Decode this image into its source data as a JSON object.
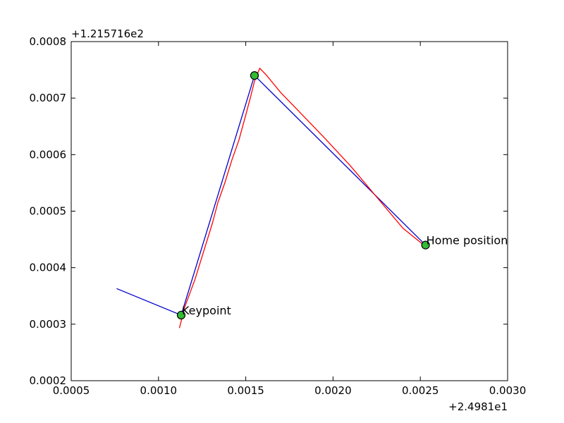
{
  "chart_data": {
    "type": "line",
    "title": "",
    "xlabel": "",
    "ylabel": "",
    "x_offset_label": "+2.4981e1",
    "y_offset_label": "+1.215716e2",
    "xlim": [
      0.0005,
      0.003
    ],
    "ylim": [
      0.0002,
      0.0008
    ],
    "x_ticks": [
      "0.0005",
      "0.0010",
      "0.0015",
      "0.0020",
      "0.0025",
      "0.0030"
    ],
    "y_ticks": [
      "0.0002",
      "0.0003",
      "0.0004",
      "0.0005",
      "0.0006",
      "0.0007",
      "0.0008"
    ],
    "grid": false,
    "series": [
      {
        "color": "#0000cc",
        "x": [
          0.00076,
          0.00113,
          0.00155,
          0.00253
        ],
        "y": [
          0.000363,
          0.000316,
          0.00074,
          0.00044
        ]
      },
      {
        "color": "#ff0000",
        "x": [
          0.00112,
          0.00115,
          0.00118,
          0.00121,
          0.00124,
          0.00127,
          0.00131,
          0.00134,
          0.00138,
          0.00142,
          0.00146,
          0.0015,
          0.00153,
          0.00155,
          0.00158,
          0.00162,
          0.0017,
          0.0018,
          0.00195,
          0.0021,
          0.00225,
          0.0024,
          0.00252
        ],
        "y": [
          0.000293,
          0.00033,
          0.000355,
          0.00038,
          0.00041,
          0.00044,
          0.00048,
          0.000515,
          0.00055,
          0.00059,
          0.000625,
          0.00067,
          0.000705,
          0.00073,
          0.000753,
          0.00074,
          0.00071,
          0.000678,
          0.00063,
          0.00058,
          0.000525,
          0.00047,
          0.00044
        ]
      },
      {
        "color": "#33bb33",
        "marker": "circle",
        "x": [
          0.00113,
          0.00155,
          0.00253
        ],
        "y": [
          0.000316,
          0.00074,
          0.00044
        ]
      }
    ],
    "annotations": [
      {
        "text": "Keypoint",
        "x": 0.00113,
        "y": 0.000316
      },
      {
        "text": "Home position",
        "x": 0.00253,
        "y": 0.00044
      }
    ]
  }
}
